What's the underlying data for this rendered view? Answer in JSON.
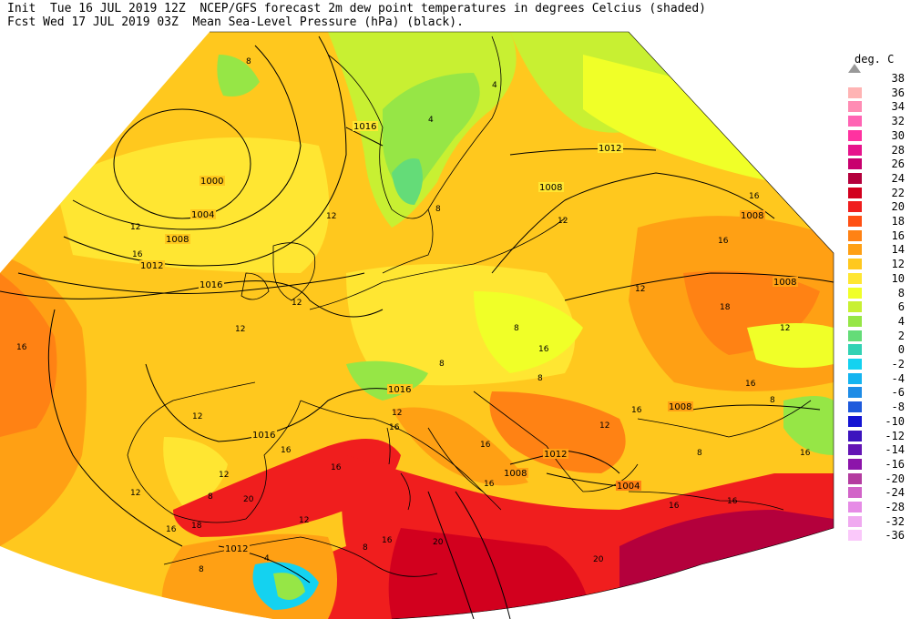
{
  "header": {
    "line1": "Init  Tue 16 JUL 2019 12Z  NCEP/GFS forecast 2m dew point temperatures in degrees Celcius (shaded)",
    "line2": "Fcst Wed 17 JUL 2019 03Z  Mean Sea-Level Pressure (hPa) (black)."
  },
  "legend": {
    "unit": "deg. C",
    "items": [
      {
        "label": "38",
        "color": "#ffffff"
      },
      {
        "label": "36",
        "color": "#ffb4b4"
      },
      {
        "label": "34",
        "color": "#ff8cb4"
      },
      {
        "label": "32",
        "color": "#ff64b4"
      },
      {
        "label": "30",
        "color": "#ff32a0"
      },
      {
        "label": "28",
        "color": "#e6148c"
      },
      {
        "label": "26",
        "color": "#c8006e"
      },
      {
        "label": "24",
        "color": "#b4003c"
      },
      {
        "label": "22",
        "color": "#d2001e"
      },
      {
        "label": "20",
        "color": "#f01e1e"
      },
      {
        "label": "18",
        "color": "#ff5014"
      },
      {
        "label": "16",
        "color": "#ff8214"
      },
      {
        "label": "14",
        "color": "#ffa014"
      },
      {
        "label": "12",
        "color": "#ffc81e"
      },
      {
        "label": "10",
        "color": "#ffe632"
      },
      {
        "label": "8",
        "color": "#f0ff28"
      },
      {
        "label": "6",
        "color": "#c8f032"
      },
      {
        "label": "4",
        "color": "#96e646"
      },
      {
        "label": "2",
        "color": "#64dc78"
      },
      {
        "label": "0",
        "color": "#32d2b4"
      },
      {
        "label": "-2",
        "color": "#14d2f0"
      },
      {
        "label": "-4",
        "color": "#14b4f0"
      },
      {
        "label": "-6",
        "color": "#1e8ce6"
      },
      {
        "label": "-8",
        "color": "#1e5adc"
      },
      {
        "label": "-10",
        "color": "#1414d2"
      },
      {
        "label": "-12",
        "color": "#3c14be"
      },
      {
        "label": "-14",
        "color": "#6414b4"
      },
      {
        "label": "-16",
        "color": "#8c14aa"
      },
      {
        "label": "-20",
        "color": "#b43ca0"
      },
      {
        "label": "-24",
        "color": "#d264c8"
      },
      {
        "label": "-28",
        "color": "#e68ce6"
      },
      {
        "label": "-32",
        "color": "#f0aaf0"
      },
      {
        "label": "-36",
        "color": "#fac8fa"
      }
    ]
  },
  "isobars": [
    {
      "label": "1000"
    },
    {
      "label": "1004"
    },
    {
      "label": "1008"
    },
    {
      "label": "1012"
    },
    {
      "label": "1016"
    },
    {
      "label": "1016"
    },
    {
      "label": "1012"
    },
    {
      "label": "1008"
    },
    {
      "label": "1008"
    },
    {
      "label": "1008"
    },
    {
      "label": "1016"
    },
    {
      "label": "1016"
    },
    {
      "label": "1008"
    },
    {
      "label": "1012"
    },
    {
      "label": "1008"
    },
    {
      "label": "1004"
    },
    {
      "label": "1012"
    }
  ],
  "dewpoint_labels": [
    "8",
    "4",
    "12",
    "16",
    "12",
    "12",
    "12",
    "16",
    "12",
    "12",
    "16",
    "12",
    "8",
    "4",
    "8",
    "8",
    "16",
    "18",
    "16",
    "12",
    "16",
    "12",
    "16",
    "16",
    "16",
    "16",
    "8",
    "8",
    "12",
    "20",
    "16",
    "20",
    "20",
    "12",
    "4",
    "8",
    "8",
    "18",
    "16",
    "12",
    "16",
    "8",
    "16",
    "16",
    "12",
    "8",
    "16",
    "16"
  ]
}
